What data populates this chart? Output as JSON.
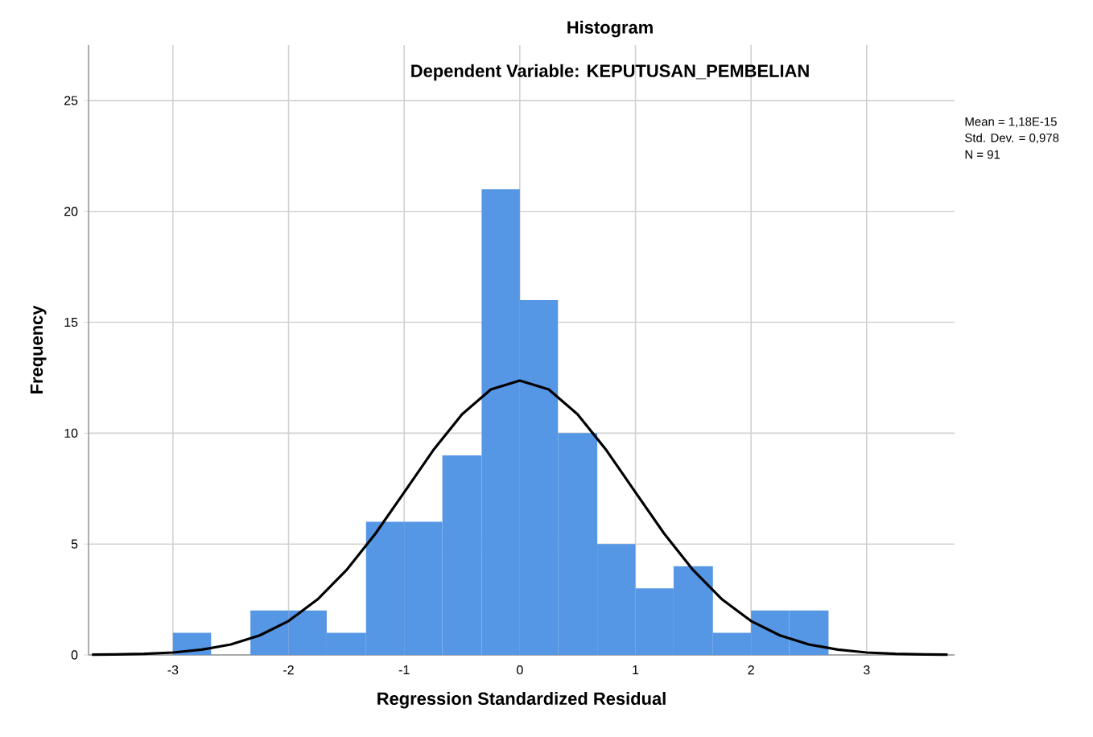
{
  "chart_data": {
    "type": "histogram",
    "title": "Histogram",
    "subtitle": "Dependent Variable: KEPUTUSAN_PEMBELIAN",
    "xlabel": "Regression Standardized Residual",
    "ylabel": "Frequency",
    "bins": [
      -3,
      -2.67,
      -2.33,
      -2,
      -1.67,
      -1.33,
      -1,
      -0.67,
      -0.33,
      0,
      0.33,
      0.67,
      1,
      1.33,
      1.67,
      2,
      2.33,
      2.67
    ],
    "values": [
      1,
      0,
      2,
      2,
      1,
      6,
      6,
      9,
      21,
      16,
      10,
      5,
      3,
      4,
      1,
      2,
      2
    ],
    "color": "#5596e5",
    "series": [
      {
        "type": "line",
        "color": "#000000",
        "x": [
          -3.7,
          -3.5,
          -3.25,
          -3,
          -2.75,
          -2.5,
          -2.25,
          -2,
          -1.75,
          -1.5,
          -1.25,
          -1,
          -0.75,
          -0.5,
          -0.25,
          0,
          0.25,
          0.5,
          0.75,
          1,
          1.25,
          1.5,
          1.75,
          2,
          2.25,
          2.5,
          2.75,
          3,
          3.25,
          3.5,
          3.7
        ],
        "values": [
          0.01,
          0.02,
          0.05,
          0.11,
          0.24,
          0.47,
          0.88,
          1.53,
          2.5,
          3.82,
          5.46,
          7.33,
          9.22,
          10.85,
          11.97,
          12.37,
          11.97,
          10.85,
          9.22,
          7.33,
          5.46,
          3.82,
          2.5,
          1.53,
          0.88,
          0.47,
          0.24,
          0.11,
          0.05,
          0.02,
          0.01
        ]
      }
    ],
    "xlim": [
      -3.73,
      3.76
    ],
    "ylim": [
      0,
      27.5
    ],
    "xticks": [
      -3,
      -2,
      -1,
      0,
      1,
      2,
      3
    ],
    "yticks": [
      0,
      5,
      10,
      15,
      20,
      25
    ],
    "grid": true,
    "annotations": [
      "Mean = 1,18E-15",
      "Std. Dev. = 0,978",
      "N = 91"
    ]
  }
}
